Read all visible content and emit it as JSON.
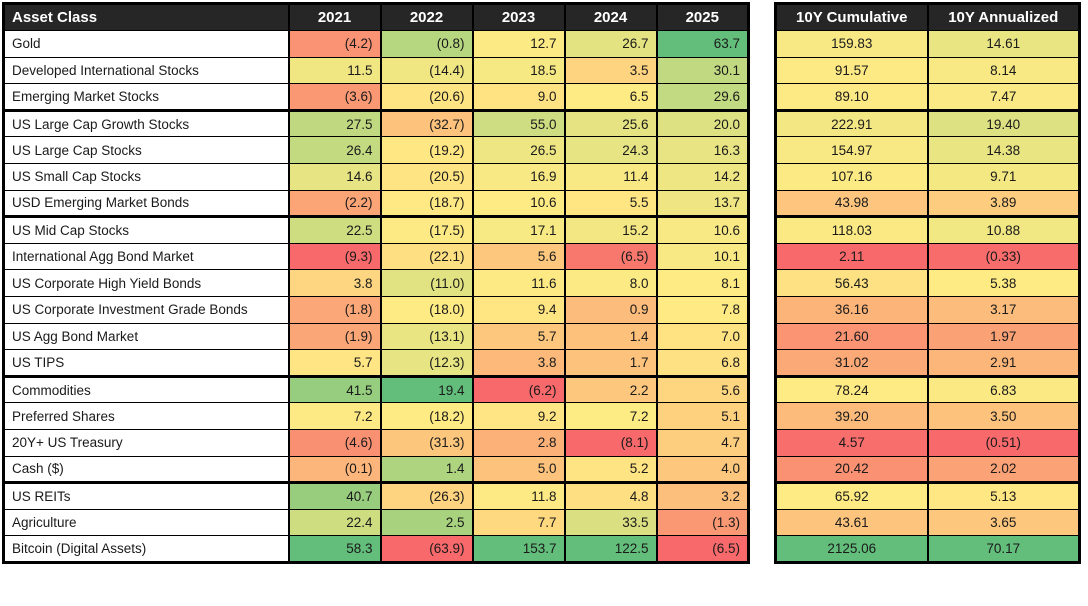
{
  "left_table": {
    "asset_header": "Asset Class"
  },
  "chart_data": {
    "type": "heatmap",
    "columns": [
      "2021",
      "2022",
      "2023",
      "2024",
      "2025",
      "10Y Cumulative",
      "10Y Annualized"
    ],
    "decimals": [
      1,
      1,
      1,
      1,
      1,
      2,
      2
    ],
    "row_labels": [
      "Gold",
      "Developed International Stocks",
      "Emerging Market Stocks",
      "US Large Cap Growth Stocks",
      "US Large Cap Stocks",
      "US Small Cap Stocks",
      "USD Emerging Market Bonds",
      "US Mid Cap Stocks",
      "International Agg Bond Market",
      "US Corporate High Yield Bonds",
      "US Corporate Investment Grade Bonds",
      "US Agg Bond Market",
      "US TIPS",
      "Commodities",
      "Preferred Shares",
      "20Y+ US Treasury",
      "Cash ($)",
      "US REITs",
      "Agriculture",
      "Bitcoin (Digital Assets)"
    ],
    "values": [
      [
        -4.2,
        -0.8,
        12.7,
        26.7,
        63.7,
        159.83,
        14.61
      ],
      [
        11.5,
        -14.4,
        18.5,
        3.5,
        30.1,
        91.57,
        8.14
      ],
      [
        -3.6,
        -20.6,
        9.0,
        6.5,
        29.6,
        89.1,
        7.47
      ],
      [
        27.5,
        -32.7,
        55.0,
        25.6,
        20.0,
        222.91,
        19.4
      ],
      [
        26.4,
        -19.2,
        26.5,
        24.3,
        16.3,
        154.97,
        14.38
      ],
      [
        14.6,
        -20.5,
        16.9,
        11.4,
        14.2,
        107.16,
        9.71
      ],
      [
        -2.2,
        -18.7,
        10.6,
        5.5,
        13.7,
        43.98,
        3.89
      ],
      [
        22.5,
        -17.5,
        17.1,
        15.2,
        10.6,
        118.03,
        10.88
      ],
      [
        -9.3,
        -22.1,
        5.6,
        -6.5,
        10.1,
        2.11,
        -0.33
      ],
      [
        3.8,
        -11.0,
        11.6,
        8.0,
        8.1,
        56.43,
        5.38
      ],
      [
        -1.8,
        -18.0,
        9.4,
        0.9,
        7.8,
        36.16,
        3.17
      ],
      [
        -1.9,
        -13.1,
        5.7,
        1.4,
        7.0,
        21.6,
        1.97
      ],
      [
        5.7,
        -12.3,
        3.8,
        1.7,
        6.8,
        31.02,
        2.91
      ],
      [
        41.5,
        19.4,
        -6.2,
        2.2,
        5.6,
        78.24,
        6.83
      ],
      [
        7.2,
        -18.2,
        9.2,
        7.2,
        5.1,
        39.2,
        3.5
      ],
      [
        -4.6,
        -31.3,
        2.8,
        -8.1,
        4.7,
        4.57,
        -0.51
      ],
      [
        -0.1,
        1.4,
        5.0,
        5.2,
        4.0,
        20.42,
        2.02
      ],
      [
        40.7,
        -26.3,
        11.8,
        4.8,
        3.2,
        65.92,
        5.13
      ],
      [
        22.4,
        2.5,
        7.7,
        33.5,
        -1.3,
        43.61,
        3.65
      ],
      [
        58.3,
        -63.9,
        153.7,
        122.5,
        -6.5,
        2125.06,
        70.17
      ]
    ],
    "color_scale": {
      "low": "#F8696B",
      "mid": "#FFEB84",
      "high": "#63BE7B",
      "scope": "per-column",
      "midpoint": "median"
    },
    "negative_format": "parentheses",
    "group_separators_after_rows": [
      3,
      7,
      13,
      17
    ]
  },
  "styles": {
    "header_bg": "#262626",
    "header_text": "#FFFFFF",
    "border_color": "#000000",
    "cell_text": "#1A1A1A",
    "row_label_bg": "#FFFFFF"
  }
}
